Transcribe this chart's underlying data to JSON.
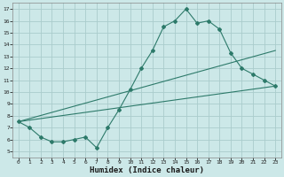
{
  "xlabel": "Humidex (Indice chaleur)",
  "bg_color": "#cce8e8",
  "grid_color": "#aacccc",
  "line_color": "#2d7a6a",
  "xlim": [
    -0.5,
    23.5
  ],
  "ylim": [
    4.5,
    17.5
  ],
  "xticks": [
    0,
    1,
    2,
    3,
    4,
    5,
    6,
    7,
    8,
    9,
    10,
    11,
    12,
    13,
    14,
    15,
    16,
    17,
    18,
    19,
    20,
    21,
    22,
    23
  ],
  "yticks": [
    5,
    6,
    7,
    8,
    9,
    10,
    11,
    12,
    13,
    14,
    15,
    16,
    17
  ],
  "line1_x": [
    0,
    1,
    2,
    3,
    4,
    5,
    6,
    7,
    8,
    9,
    10,
    11,
    12,
    13,
    14,
    15,
    16,
    17,
    18,
    19,
    20,
    21,
    22,
    23
  ],
  "line1_y": [
    7.5,
    7.0,
    6.2,
    5.8,
    5.8,
    6.0,
    6.2,
    5.3,
    7.0,
    8.5,
    10.2,
    12.0,
    13.5,
    15.5,
    16.0,
    17.0,
    15.8,
    16.0,
    15.3,
    13.3,
    12.0,
    11.5,
    11.0,
    10.5
  ],
  "line2_x": [
    0,
    23
  ],
  "line2_y": [
    7.5,
    10.5
  ],
  "line3_x": [
    0,
    23
  ],
  "line3_y": [
    7.5,
    13.5
  ]
}
